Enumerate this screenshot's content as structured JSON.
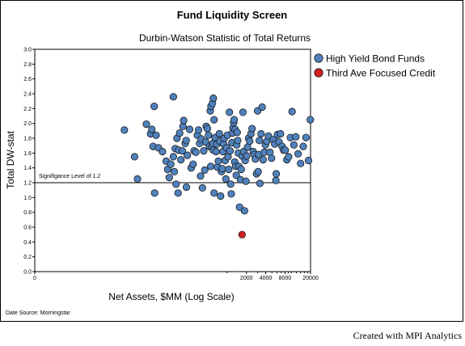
{
  "chart_data": {
    "type": "scatter",
    "title": "Fund Liquidity Screen",
    "subtitle": "Durbin-Watson Statistic of Total Returns",
    "xlabel": "Net Assets, $MM (Log Scale)",
    "ylabel": "Total DW-stat",
    "x_scale": "log",
    "x_ticks": [
      "0",
      "2000",
      "4000",
      "8000",
      "20000"
    ],
    "x_tick_values": [
      0,
      2000,
      4000,
      8000,
      20000
    ],
    "xlim": [
      1,
      20000
    ],
    "ylim": [
      0.0,
      3.0
    ],
    "y_ticks": [
      "0.0",
      "0.2",
      "0.4",
      "0.6",
      "0.8",
      "1.0",
      "1.2",
      "1.4",
      "1.6",
      "1.8",
      "2.0",
      "2.2",
      "2.4",
      "2.6",
      "2.8",
      "3.0"
    ],
    "y_tick_values": [
      0.0,
      0.2,
      0.4,
      0.6,
      0.8,
      1.0,
      1.2,
      1.4,
      1.6,
      1.8,
      2.0,
      2.2,
      2.4,
      2.6,
      2.8,
      3.0
    ],
    "grid": false,
    "legend_position": "top-right",
    "reference_line": {
      "value": 1.2,
      "label": "Signifigance Level of 1.2"
    },
    "source_note": "Date Source: Morningstar",
    "series": [
      {
        "name": "High Yield Bond Funds",
        "color": "#4f81bd",
        "points": [
          [
            25,
            1.91
          ],
          [
            36,
            1.55
          ],
          [
            40,
            1.25
          ],
          [
            55,
            1.99
          ],
          [
            64,
            1.86
          ],
          [
            67,
            1.92
          ],
          [
            70,
            1.69
          ],
          [
            73,
            2.23
          ],
          [
            78,
            1.84
          ],
          [
            74,
            1.06
          ],
          [
            85,
            1.67
          ],
          [
            98,
            1.62
          ],
          [
            112,
            1.49
          ],
          [
            118,
            1.38
          ],
          [
            125,
            1.27
          ],
          [
            132,
            1.45
          ],
          [
            145,
            1.55
          ],
          [
            150,
            1.35
          ],
          [
            160,
            1.18
          ],
          [
            172,
            1.06
          ],
          [
            145,
            2.36
          ],
          [
            155,
            1.66
          ],
          [
            165,
            1.8
          ],
          [
            175,
            1.64
          ],
          [
            190,
            1.51
          ],
          [
            182,
            1.87
          ],
          [
            205,
            1.96
          ],
          [
            210,
            2.04
          ],
          [
            200,
            1.63
          ],
          [
            222,
            1.73
          ],
          [
            230,
            1.77
          ],
          [
            240,
            1.57
          ],
          [
            260,
            1.92
          ],
          [
            232,
            1.14
          ],
          [
            275,
            1.4
          ],
          [
            295,
            1.45
          ],
          [
            305,
            1.63
          ],
          [
            325,
            1.61
          ],
          [
            343,
            1.84
          ],
          [
            372,
            1.73
          ],
          [
            358,
            1.91
          ],
          [
            395,
            1.79
          ],
          [
            385,
            1.29
          ],
          [
            412,
            1.13
          ],
          [
            432,
            1.63
          ],
          [
            448,
            1.37
          ],
          [
            462,
            1.75
          ],
          [
            472,
            1.96
          ],
          [
            492,
            1.93
          ],
          [
            512,
            1.84
          ],
          [
            532,
            1.69
          ],
          [
            545,
            2.17
          ],
          [
            560,
            2.23
          ],
          [
            590,
            2.27
          ],
          [
            610,
            2.34
          ],
          [
            625,
            2.05
          ],
          [
            555,
            1.42
          ],
          [
            575,
            1.68
          ],
          [
            600,
            1.73
          ],
          [
            610,
            1.64
          ],
          [
            625,
            1.06
          ],
          [
            650,
            1.81
          ],
          [
            670,
            1.62
          ],
          [
            690,
            1.72
          ],
          [
            705,
            1.41
          ],
          [
            730,
            1.49
          ],
          [
            755,
            1.86
          ],
          [
            772,
            1.76
          ],
          [
            792,
            1.02
          ],
          [
            815,
            1.35
          ],
          [
            842,
            1.39
          ],
          [
            862,
            1.62
          ],
          [
            882,
            1.72
          ],
          [
            902,
            1.8
          ],
          [
            930,
            1.5
          ],
          [
            955,
            1.25
          ],
          [
            980,
            1.67
          ],
          [
            1010,
            1.84
          ],
          [
            1035,
            1.55
          ],
          [
            1062,
            1.38
          ],
          [
            1085,
            2.15
          ],
          [
            1112,
            1.63
          ],
          [
            1135,
            1.18
          ],
          [
            1162,
            1.05
          ],
          [
            1185,
            1.74
          ],
          [
            1212,
            1.87
          ],
          [
            1235,
            1.94
          ],
          [
            1262,
            2.01
          ],
          [
            1285,
            2.05
          ],
          [
            1312,
            1.48
          ],
          [
            1335,
            1.92
          ],
          [
            1362,
            1.42
          ],
          [
            1390,
            1.3
          ],
          [
            1412,
            1.71
          ],
          [
            1435,
            1.88
          ],
          [
            1462,
            1.77
          ],
          [
            1490,
            1.6
          ],
          [
            1520,
            1.42
          ],
          [
            1562,
            0.87
          ],
          [
            1612,
            1.24
          ],
          [
            1662,
            1.38
          ],
          [
            1712,
            1.56
          ],
          [
            1762,
            2.15
          ],
          [
            1812,
            1.62
          ],
          [
            1862,
            0.82
          ],
          [
            1912,
            1.5
          ],
          [
            1962,
            1.22
          ],
          [
            2025,
            1.56
          ],
          [
            2085,
            1.68
          ],
          [
            2160,
            1.8
          ],
          [
            2250,
            1.76
          ],
          [
            2350,
            1.86
          ],
          [
            2450,
            1.93
          ],
          [
            2550,
            1.62
          ],
          [
            2660,
            1.58
          ],
          [
            2760,
            1.52
          ],
          [
            2880,
            1.32
          ],
          [
            2990,
            2.17
          ],
          [
            3050,
            1.35
          ],
          [
            3110,
            1.58
          ],
          [
            3180,
            1.77
          ],
          [
            3250,
            1.19
          ],
          [
            3380,
            1.86
          ],
          [
            3520,
            2.22
          ],
          [
            3650,
            1.51
          ],
          [
            3800,
            1.61
          ],
          [
            3960,
            1.71
          ],
          [
            4150,
            1.76
          ],
          [
            4400,
            1.83
          ],
          [
            4650,
            1.61
          ],
          [
            4930,
            1.53
          ],
          [
            5250,
            1.78
          ],
          [
            5530,
            1.72
          ],
          [
            5750,
            1.23
          ],
          [
            5830,
            1.32
          ],
          [
            6100,
            1.85
          ],
          [
            6450,
            1.75
          ],
          [
            6800,
            1.86
          ],
          [
            7200,
            1.69
          ],
          [
            7600,
            1.64
          ],
          [
            8050,
            1.64
          ],
          [
            8550,
            1.51
          ],
          [
            9100,
            1.55
          ],
          [
            9700,
            1.81
          ],
          [
            10300,
            2.16
          ],
          [
            11000,
            1.71
          ],
          [
            11800,
            1.82
          ],
          [
            12800,
            1.59
          ],
          [
            14000,
            1.46
          ],
          [
            15400,
            1.69
          ],
          [
            17000,
            1.81
          ],
          [
            18600,
            1.5
          ],
          [
            19800,
            2.05
          ]
        ]
      },
      {
        "name": "Third Ave Focused Credit",
        "color": "#d32020",
        "points": [
          [
            1710,
            0.5
          ]
        ]
      }
    ]
  },
  "footer": {
    "credit": "Created with MPI Analytics"
  }
}
